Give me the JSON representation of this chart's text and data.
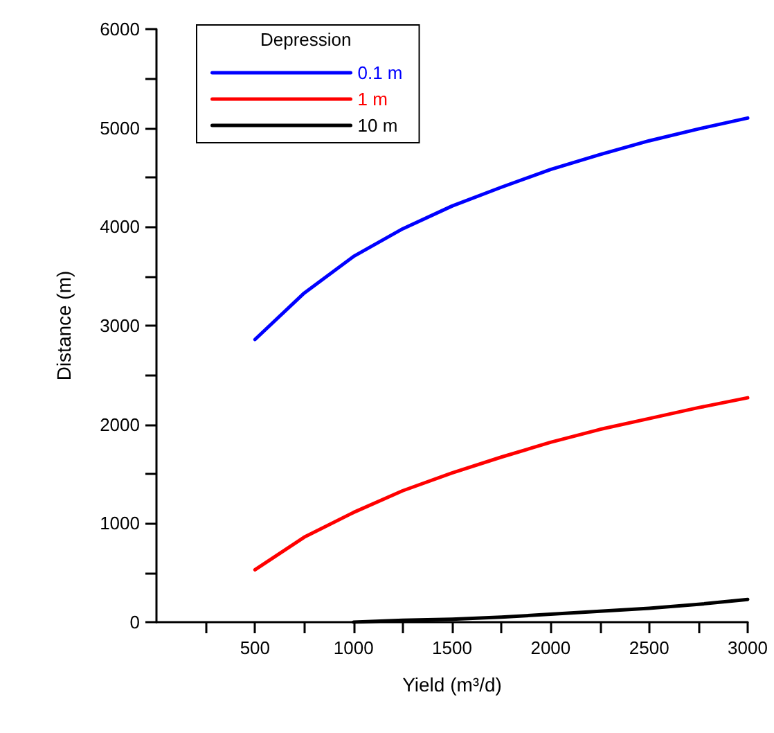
{
  "chart_data": {
    "type": "line",
    "xlabel": "Yield (m³/d)",
    "ylabel": "Distance (m)",
    "legend_title": "Depression",
    "legend": "top left",
    "series": [
      {
        "name": "0.1 m",
        "color": "#0000ff",
        "x": [
          500,
          750,
          1000,
          1250,
          1500,
          1750,
          2000,
          2250,
          2500,
          2750,
          3000
        ],
        "values": [
          2860,
          3330,
          3700,
          3980,
          4210,
          4400,
          4580,
          4730,
          4870,
          4990,
          5100
        ]
      },
      {
        "name": "1 m",
        "color": "#ff0000",
        "x": [
          500,
          750,
          1000,
          1250,
          1500,
          1750,
          2000,
          2250,
          2500,
          2750,
          3000
        ],
        "values": [
          530,
          860,
          1110,
          1330,
          1510,
          1670,
          1820,
          1950,
          2060,
          2170,
          2270
        ]
      },
      {
        "name": "10 m",
        "color": "#000000",
        "x": [
          1000,
          1250,
          1500,
          1750,
          2000,
          2250,
          2500,
          2750,
          3000
        ],
        "values": [
          0,
          20,
          30,
          50,
          80,
          110,
          140,
          180,
          230
        ]
      }
    ],
    "xlim": [
      0,
      3000
    ],
    "xticks": [
      {
        "value": 250,
        "label": null
      },
      500,
      {
        "value": 750,
        "label": null
      },
      1000,
      {
        "value": 1250,
        "label": null
      },
      1500,
      {
        "value": 1750,
        "label": null
      },
      2000,
      {
        "value": 2250,
        "label": null
      },
      2500,
      {
        "value": 2750,
        "label": null
      },
      3000
    ],
    "ylim": [
      0,
      6000
    ],
    "yticks": [
      0,
      {
        "value": 500,
        "label": null
      },
      1000,
      {
        "value": 1500,
        "label": null
      },
      2000,
      {
        "value": 2500,
        "label": null
      },
      3000,
      {
        "value": 3500,
        "label": null
      },
      4000,
      {
        "value": 4500,
        "label": null
      },
      5000,
      {
        "value": 5500,
        "label": null
      },
      6000
    ],
    "grid": false,
    "marker": "none",
    "line_style": "solid"
  }
}
